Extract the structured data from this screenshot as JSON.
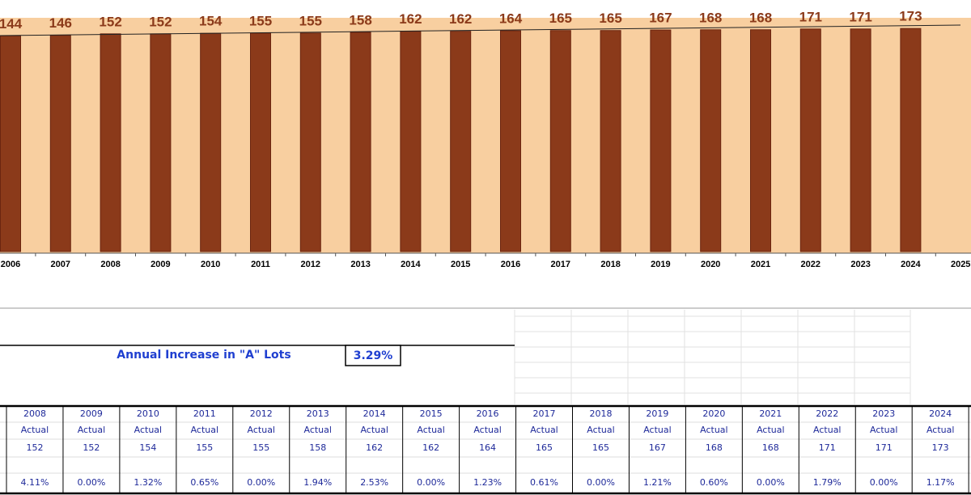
{
  "chart_data": {
    "type": "bar",
    "categories": [
      "2006",
      "2007",
      "2008",
      "2009",
      "2010",
      "2011",
      "2012",
      "2013",
      "2014",
      "2015",
      "2016",
      "2017",
      "2018",
      "2019",
      "2020",
      "2021",
      "2022",
      "2023",
      "2024",
      "2025"
    ],
    "values": [
      144,
      146,
      152,
      152,
      154,
      155,
      155,
      158,
      162,
      162,
      164,
      165,
      165,
      167,
      168,
      168,
      171,
      171,
      173,
      null
    ],
    "color": "#8b3a1a",
    "ylim": [
      -700,
      180
    ]
  },
  "annual_increase": {
    "label": "Annual Increase in \"A\" Lots",
    "value": "3.29%"
  },
  "table": {
    "columns": [
      {
        "year": "2008",
        "status": "Actual",
        "value": "152",
        "change": "4.11%"
      },
      {
        "year": "2009",
        "status": "Actual",
        "value": "152",
        "change": "0.00%"
      },
      {
        "year": "2010",
        "status": "Actual",
        "value": "154",
        "change": "1.32%"
      },
      {
        "year": "2011",
        "status": "Actual",
        "value": "155",
        "change": "0.65%"
      },
      {
        "year": "2012",
        "status": "Actual",
        "value": "155",
        "change": "0.00%"
      },
      {
        "year": "2013",
        "status": "Actual",
        "value": "158",
        "change": "1.94%"
      },
      {
        "year": "2014",
        "status": "Actual",
        "value": "162",
        "change": "2.53%"
      },
      {
        "year": "2015",
        "status": "Actual",
        "value": "162",
        "change": "0.00%"
      },
      {
        "year": "2016",
        "status": "Actual",
        "value": "164",
        "change": "1.23%"
      },
      {
        "year": "2017",
        "status": "Actual",
        "value": "165",
        "change": "0.61%"
      },
      {
        "year": "2018",
        "status": "Actual",
        "value": "165",
        "change": "0.00%"
      },
      {
        "year": "2019",
        "status": "Actual",
        "value": "167",
        "change": "1.21%"
      },
      {
        "year": "2020",
        "status": "Actual",
        "value": "168",
        "change": "0.60%"
      },
      {
        "year": "2021",
        "status": "Actual",
        "value": "168",
        "change": "0.00%"
      },
      {
        "year": "2022",
        "status": "Actual",
        "value": "171",
        "change": "1.79%"
      },
      {
        "year": "2023",
        "status": "Actual",
        "value": "171",
        "change": "0.00%"
      },
      {
        "year": "2024",
        "status": "Actual",
        "value": "173",
        "change": "1.17%"
      }
    ]
  }
}
